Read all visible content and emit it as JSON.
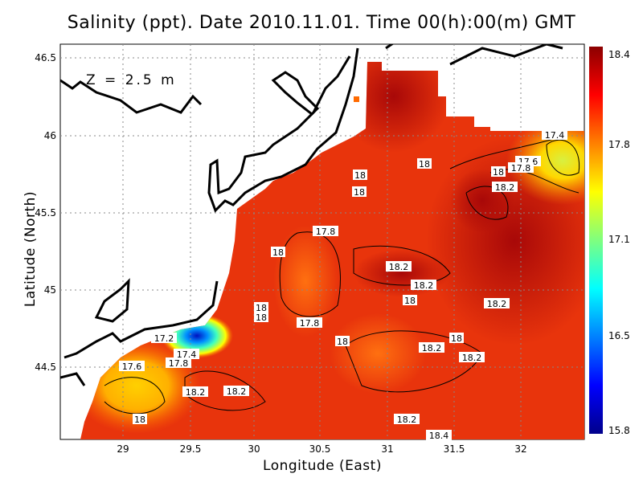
{
  "title": "Salinity (ppt). Date 2010.11.01. Time 00(h):00(m) GMT",
  "depth_label": "Z = 2.5 m",
  "x_axis": {
    "label": "Longitude (East)",
    "ticks": [
      "29",
      "29.5",
      "30",
      "30.5",
      "31",
      "31.5",
      "32"
    ]
  },
  "y_axis": {
    "label": "Latitude (North)",
    "ticks": [
      "46.5",
      "46",
      "45.5",
      "45",
      "44.5"
    ]
  },
  "colorbar": {
    "ticks": [
      "18.4",
      "17.8",
      "17.1",
      "16.5",
      "15.8"
    ],
    "colors": [
      "#8b0000",
      "#ff0000",
      "#ff8000",
      "#ffff00",
      "#7fff7f",
      "#00ffff",
      "#0080ff",
      "#0000ff",
      "#00008b"
    ]
  },
  "contour_labels": [
    "17.4",
    "17.6",
    "17.8",
    "18",
    "18.2",
    "18",
    "18",
    "18",
    "17.8",
    "18",
    "18.2",
    "18.2",
    "18",
    "18.2",
    "18",
    "17.8",
    "18",
    "18",
    "18",
    "18.2",
    "18.2",
    "17.2",
    "17.4",
    "17.8",
    "17.6",
    "18.2",
    "18.2",
    "18",
    "18.2",
    "18.4"
  ]
}
